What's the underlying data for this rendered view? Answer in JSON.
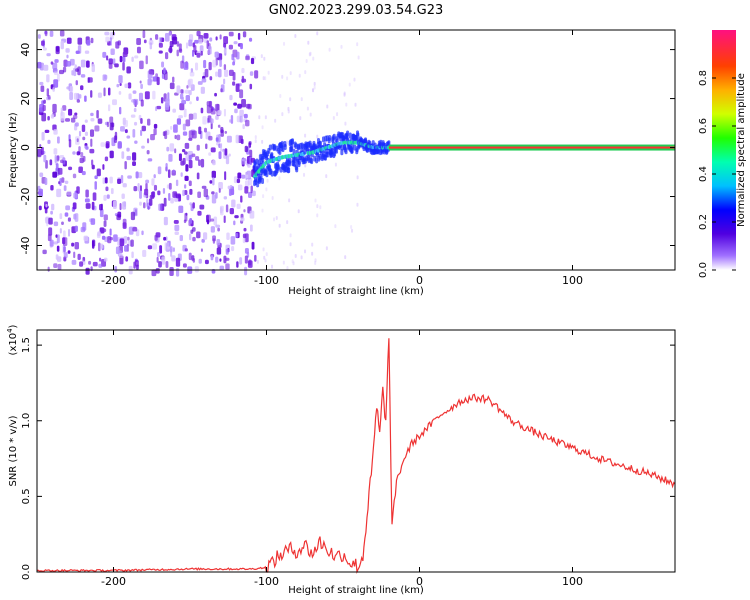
{
  "title": "GN02.2023.299.03.54.G23",
  "colors": {
    "snr_line": "#ee3333",
    "scatter": "#7a2be2"
  },
  "colorbar": {
    "label": "Normalized spectral amplitude",
    "ticks": [
      "0.0",
      "0.2",
      "0.4",
      "0.6",
      "0.8"
    ]
  },
  "chart_data": [
    {
      "type": "heatmap",
      "xlabel": "Height of straight line (km)",
      "ylabel": "Frequency (Hz)",
      "xlim": [
        -250,
        167
      ],
      "ylim": [
        -50,
        48
      ],
      "xticks": [
        -200,
        -100,
        0,
        100
      ],
      "yticks": [
        -40,
        -20,
        0,
        20,
        40
      ],
      "xtick_labels": [
        "-200",
        "-100",
        "0",
        "100"
      ],
      "ytick_labels": [
        "-40",
        "-20",
        "0",
        "20",
        "40"
      ],
      "colorscale": "rainbow",
      "vrange": [
        0,
        1
      ],
      "noise_region_x": [
        -250,
        -108
      ],
      "signal_track": [
        {
          "x": -108,
          "y": -12
        },
        {
          "x": -100,
          "y": -6
        },
        {
          "x": -90,
          "y": -4
        },
        {
          "x": -80,
          "y": -3
        },
        {
          "x": -70,
          "y": -2
        },
        {
          "x": -60,
          "y": 0
        },
        {
          "x": -50,
          "y": 2
        },
        {
          "x": -40,
          "y": 2
        },
        {
          "x": -30,
          "y": 0
        },
        {
          "x": -20,
          "y": 0
        },
        {
          "x": 0,
          "y": 0
        },
        {
          "x": 167,
          "y": 0
        }
      ]
    },
    {
      "type": "line",
      "xlabel": "Height of straight line (km)",
      "ylabel": "SNR (10 * v/v)",
      "y_multiplier": "(x10",
      "y_multiplier_exp": "4",
      "y_multiplier_close": ")",
      "xlim": [
        -250,
        167
      ],
      "ylim": [
        0,
        1.6
      ],
      "xticks": [
        -200,
        -100,
        0,
        100
      ],
      "yticks": [
        0,
        0.5,
        1.0,
        1.5
      ],
      "xtick_labels": [
        "-200",
        "-100",
        "0",
        "100"
      ],
      "ytick_labels": [
        "0.0",
        "0.5",
        "1.0",
        "1.5"
      ],
      "x": [
        -250,
        -200,
        -150,
        -110,
        -100,
        -90,
        -85,
        -80,
        -75,
        -70,
        -65,
        -60,
        -55,
        -50,
        -45,
        -40,
        -37,
        -35,
        -33,
        -30,
        -28,
        -26,
        -24,
        -22,
        -20,
        -18,
        -15,
        -10,
        -5,
        0,
        5,
        10,
        15,
        20,
        25,
        30,
        35,
        40,
        45,
        50,
        55,
        60,
        70,
        80,
        90,
        100,
        110,
        120,
        130,
        140,
        150,
        160,
        167
      ],
      "y": [
        0.01,
        0.01,
        0.02,
        0.02,
        0.03,
        0.12,
        0.15,
        0.14,
        0.18,
        0.12,
        0.2,
        0.15,
        0.1,
        0.12,
        0.06,
        0.04,
        0.1,
        0.3,
        0.5,
        0.8,
        1.1,
        0.9,
        1.2,
        1.0,
        1.55,
        0.3,
        0.6,
        0.75,
        0.85,
        0.9,
        0.95,
        1.0,
        1.05,
        1.08,
        1.12,
        1.14,
        1.15,
        1.15,
        1.14,
        1.1,
        1.05,
        1.0,
        0.95,
        0.9,
        0.86,
        0.82,
        0.78,
        0.74,
        0.71,
        0.68,
        0.65,
        0.61,
        0.58
      ]
    }
  ]
}
